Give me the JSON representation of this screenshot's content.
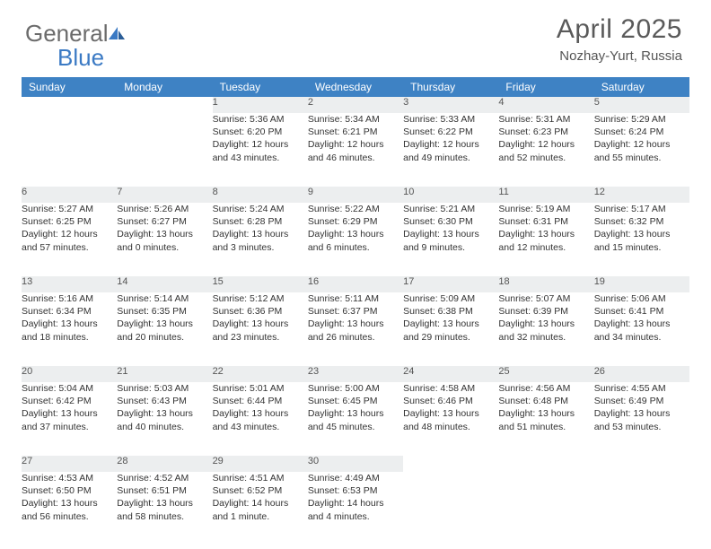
{
  "brand": {
    "part1": "General",
    "part2": "Blue"
  },
  "title": "April 2025",
  "location": "Nozhay-Yurt, Russia",
  "colors": {
    "header_bg": "#3e82c4",
    "daynum_bg": "#eceeef",
    "daynum_border_top": "#1f4e79",
    "text": "#333333",
    "title_color": "#5a5a5a"
  },
  "weekdays": [
    "Sunday",
    "Monday",
    "Tuesday",
    "Wednesday",
    "Thursday",
    "Friday",
    "Saturday"
  ],
  "weeks": [
    [
      null,
      null,
      {
        "n": "1",
        "sr": "Sunrise: 5:36 AM",
        "ss": "Sunset: 6:20 PM",
        "dl1": "Daylight: 12 hours",
        "dl2": "and 43 minutes."
      },
      {
        "n": "2",
        "sr": "Sunrise: 5:34 AM",
        "ss": "Sunset: 6:21 PM",
        "dl1": "Daylight: 12 hours",
        "dl2": "and 46 minutes."
      },
      {
        "n": "3",
        "sr": "Sunrise: 5:33 AM",
        "ss": "Sunset: 6:22 PM",
        "dl1": "Daylight: 12 hours",
        "dl2": "and 49 minutes."
      },
      {
        "n": "4",
        "sr": "Sunrise: 5:31 AM",
        "ss": "Sunset: 6:23 PM",
        "dl1": "Daylight: 12 hours",
        "dl2": "and 52 minutes."
      },
      {
        "n": "5",
        "sr": "Sunrise: 5:29 AM",
        "ss": "Sunset: 6:24 PM",
        "dl1": "Daylight: 12 hours",
        "dl2": "and 55 minutes."
      }
    ],
    [
      {
        "n": "6",
        "sr": "Sunrise: 5:27 AM",
        "ss": "Sunset: 6:25 PM",
        "dl1": "Daylight: 12 hours",
        "dl2": "and 57 minutes."
      },
      {
        "n": "7",
        "sr": "Sunrise: 5:26 AM",
        "ss": "Sunset: 6:27 PM",
        "dl1": "Daylight: 13 hours",
        "dl2": "and 0 minutes."
      },
      {
        "n": "8",
        "sr": "Sunrise: 5:24 AM",
        "ss": "Sunset: 6:28 PM",
        "dl1": "Daylight: 13 hours",
        "dl2": "and 3 minutes."
      },
      {
        "n": "9",
        "sr": "Sunrise: 5:22 AM",
        "ss": "Sunset: 6:29 PM",
        "dl1": "Daylight: 13 hours",
        "dl2": "and 6 minutes."
      },
      {
        "n": "10",
        "sr": "Sunrise: 5:21 AM",
        "ss": "Sunset: 6:30 PM",
        "dl1": "Daylight: 13 hours",
        "dl2": "and 9 minutes."
      },
      {
        "n": "11",
        "sr": "Sunrise: 5:19 AM",
        "ss": "Sunset: 6:31 PM",
        "dl1": "Daylight: 13 hours",
        "dl2": "and 12 minutes."
      },
      {
        "n": "12",
        "sr": "Sunrise: 5:17 AM",
        "ss": "Sunset: 6:32 PM",
        "dl1": "Daylight: 13 hours",
        "dl2": "and 15 minutes."
      }
    ],
    [
      {
        "n": "13",
        "sr": "Sunrise: 5:16 AM",
        "ss": "Sunset: 6:34 PM",
        "dl1": "Daylight: 13 hours",
        "dl2": "and 18 minutes."
      },
      {
        "n": "14",
        "sr": "Sunrise: 5:14 AM",
        "ss": "Sunset: 6:35 PM",
        "dl1": "Daylight: 13 hours",
        "dl2": "and 20 minutes."
      },
      {
        "n": "15",
        "sr": "Sunrise: 5:12 AM",
        "ss": "Sunset: 6:36 PM",
        "dl1": "Daylight: 13 hours",
        "dl2": "and 23 minutes."
      },
      {
        "n": "16",
        "sr": "Sunrise: 5:11 AM",
        "ss": "Sunset: 6:37 PM",
        "dl1": "Daylight: 13 hours",
        "dl2": "and 26 minutes."
      },
      {
        "n": "17",
        "sr": "Sunrise: 5:09 AM",
        "ss": "Sunset: 6:38 PM",
        "dl1": "Daylight: 13 hours",
        "dl2": "and 29 minutes."
      },
      {
        "n": "18",
        "sr": "Sunrise: 5:07 AM",
        "ss": "Sunset: 6:39 PM",
        "dl1": "Daylight: 13 hours",
        "dl2": "and 32 minutes."
      },
      {
        "n": "19",
        "sr": "Sunrise: 5:06 AM",
        "ss": "Sunset: 6:41 PM",
        "dl1": "Daylight: 13 hours",
        "dl2": "and 34 minutes."
      }
    ],
    [
      {
        "n": "20",
        "sr": "Sunrise: 5:04 AM",
        "ss": "Sunset: 6:42 PM",
        "dl1": "Daylight: 13 hours",
        "dl2": "and 37 minutes."
      },
      {
        "n": "21",
        "sr": "Sunrise: 5:03 AM",
        "ss": "Sunset: 6:43 PM",
        "dl1": "Daylight: 13 hours",
        "dl2": "and 40 minutes."
      },
      {
        "n": "22",
        "sr": "Sunrise: 5:01 AM",
        "ss": "Sunset: 6:44 PM",
        "dl1": "Daylight: 13 hours",
        "dl2": "and 43 minutes."
      },
      {
        "n": "23",
        "sr": "Sunrise: 5:00 AM",
        "ss": "Sunset: 6:45 PM",
        "dl1": "Daylight: 13 hours",
        "dl2": "and 45 minutes."
      },
      {
        "n": "24",
        "sr": "Sunrise: 4:58 AM",
        "ss": "Sunset: 6:46 PM",
        "dl1": "Daylight: 13 hours",
        "dl2": "and 48 minutes."
      },
      {
        "n": "25",
        "sr": "Sunrise: 4:56 AM",
        "ss": "Sunset: 6:48 PM",
        "dl1": "Daylight: 13 hours",
        "dl2": "and 51 minutes."
      },
      {
        "n": "26",
        "sr": "Sunrise: 4:55 AM",
        "ss": "Sunset: 6:49 PM",
        "dl1": "Daylight: 13 hours",
        "dl2": "and 53 minutes."
      }
    ],
    [
      {
        "n": "27",
        "sr": "Sunrise: 4:53 AM",
        "ss": "Sunset: 6:50 PM",
        "dl1": "Daylight: 13 hours",
        "dl2": "and 56 minutes."
      },
      {
        "n": "28",
        "sr": "Sunrise: 4:52 AM",
        "ss": "Sunset: 6:51 PM",
        "dl1": "Daylight: 13 hours",
        "dl2": "and 58 minutes."
      },
      {
        "n": "29",
        "sr": "Sunrise: 4:51 AM",
        "ss": "Sunset: 6:52 PM",
        "dl1": "Daylight: 14 hours",
        "dl2": "and 1 minute."
      },
      {
        "n": "30",
        "sr": "Sunrise: 4:49 AM",
        "ss": "Sunset: 6:53 PM",
        "dl1": "Daylight: 14 hours",
        "dl2": "and 4 minutes."
      },
      null,
      null,
      null
    ]
  ]
}
